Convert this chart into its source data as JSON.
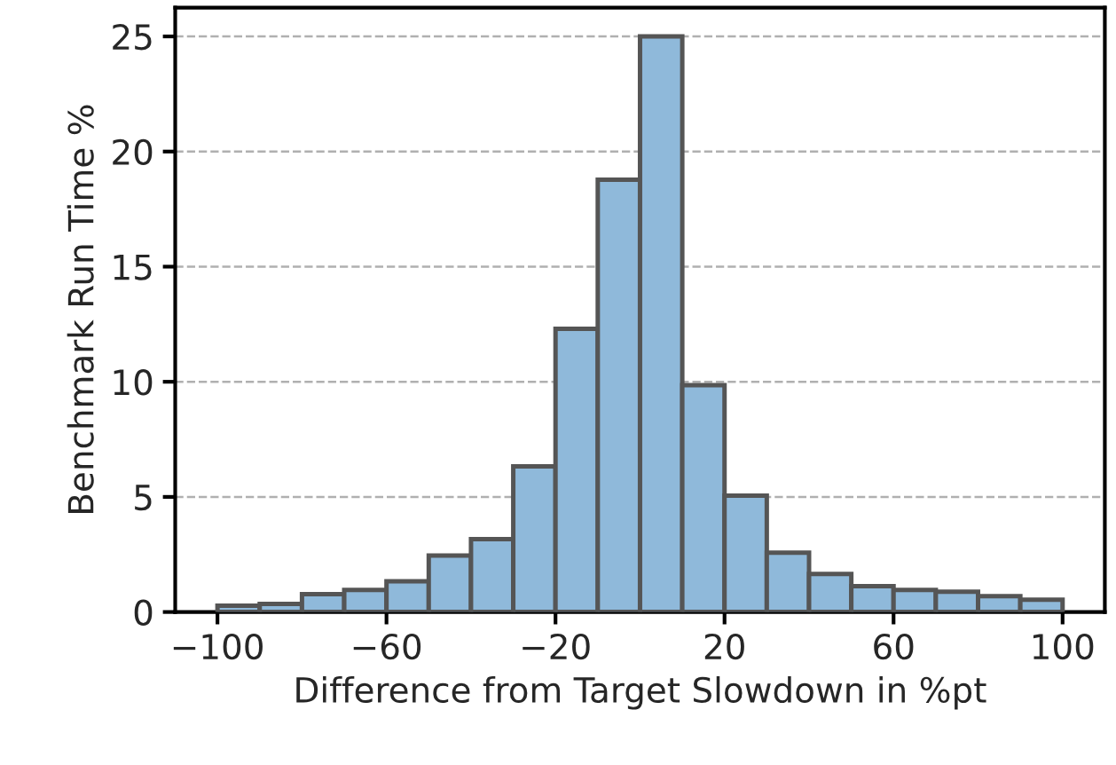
{
  "chart_data": {
    "type": "histogram",
    "xlabel": "Difference from Target Slowdown in %pt",
    "ylabel": "Benchmark Run Time %",
    "bins": [
      -100,
      -90,
      -80,
      -70,
      -60,
      -50,
      -40,
      -30,
      -20,
      -10,
      0,
      10,
      20,
      30,
      40,
      50,
      60,
      70,
      80,
      90,
      100
    ],
    "values": [
      0.27,
      0.35,
      0.77,
      0.96,
      1.33,
      2.45,
      3.16,
      6.33,
      12.3,
      18.78,
      25.0,
      9.85,
      5.05,
      2.58,
      1.65,
      1.12,
      0.96,
      0.88,
      0.69,
      0.53
    ],
    "color": "#8fb9da",
    "xlim": [
      -110,
      110
    ],
    "ylim": [
      0,
      26.25
    ],
    "xticks": [
      {
        "value": -100,
        "label": "−100"
      },
      {
        "value": -60,
        "label": "−60"
      },
      {
        "value": -20,
        "label": "−20"
      },
      20,
      60,
      100
    ],
    "yticks": [
      0,
      5,
      10,
      15,
      20,
      25
    ],
    "grid": "y"
  }
}
